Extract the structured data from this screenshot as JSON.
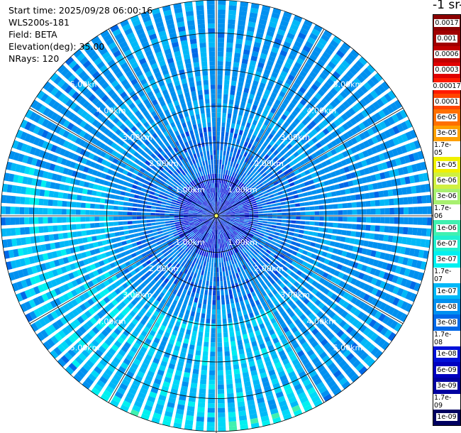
{
  "header": {
    "start_time": "Start time: 2025/09/28 06:00:16",
    "instrument": "WLS200s-181",
    "field": "Field: BETA",
    "elevation": "Elevation(deg): 35.00",
    "nrays": "NRays: 120"
  },
  "colorbar": {
    "title": "-1 sr-1",
    "levels": [
      {
        "label": "0.0017",
        "color": "#8b0000",
        "text": "#ffffff"
      },
      {
        "label": "0.001",
        "color": "#a00000",
        "text": "#ffffff"
      },
      {
        "label": "0.0006",
        "color": "#c00000",
        "text": "#ffffff"
      },
      {
        "label": "0.0003",
        "color": "#e00000",
        "text": "#ffffff"
      },
      {
        "label": "0.00017",
        "color": "#ff1a00",
        "text": "#ffffff"
      },
      {
        "label": "0.0001",
        "color": "#ff4400",
        "text": "#ffffff"
      },
      {
        "label": "6e-05",
        "color": "#ff7000",
        "text": "#000000"
      },
      {
        "label": "3e-05",
        "color": "#ffa000",
        "text": "#000000"
      },
      {
        "label": "1.7e-05",
        "color": "#ffcc00",
        "text": "#000000"
      },
      {
        "label": "1e-05",
        "color": "#f0f000",
        "text": "#000000"
      },
      {
        "label": "6e-06",
        "color": "#d0f040",
        "text": "#000000"
      },
      {
        "label": "3e-06",
        "color": "#a8f070",
        "text": "#000000"
      },
      {
        "label": "1.7e-06",
        "color": "#70f090",
        "text": "#000000"
      },
      {
        "label": "1e-06",
        "color": "#40f0b0",
        "text": "#000000"
      },
      {
        "label": "6e-07",
        "color": "#20f0d0",
        "text": "#000000"
      },
      {
        "label": "3e-07",
        "color": "#00f0f0",
        "text": "#000000"
      },
      {
        "label": "1.7e-07",
        "color": "#00d8f8",
        "text": "#000000"
      },
      {
        "label": "1e-07",
        "color": "#00b8f8",
        "text": "#000000"
      },
      {
        "label": "6e-08",
        "color": "#0090f0",
        "text": "#000000"
      },
      {
        "label": "3e-08",
        "color": "#0068e8",
        "text": "#000000"
      },
      {
        "label": "1.7e-08",
        "color": "#0040e0",
        "text": "#ffffff"
      },
      {
        "label": "1e-08",
        "color": "#0010d8",
        "text": "#ffffff"
      },
      {
        "label": "6e-09",
        "color": "#0000c0",
        "text": "#ffffff"
      },
      {
        "label": "3e-09",
        "color": "#0000a0",
        "text": "#ffffff"
      },
      {
        "label": "1.7e-09",
        "color": "#000080",
        "text": "#ffffff"
      },
      {
        "label": "1e-09",
        "color": "#000060",
        "text": "#ffffff"
      }
    ]
  },
  "chart_data": {
    "type": "heatmap",
    "projection": "polar-ppi",
    "field": "BETA",
    "elevation_deg": 35.0,
    "nrays": 120,
    "max_range_km": 5.9,
    "range_rings_km": [
      1,
      2,
      3,
      4,
      5
    ],
    "ring_labels": [
      "1.00km",
      "2.00km",
      "3.00km",
      "4.00km",
      "5.00km"
    ],
    "spokes_deg": [
      0,
      30,
      60,
      90,
      120,
      150,
      180,
      210,
      240,
      270,
      300,
      330
    ],
    "scale": "log",
    "colorbar_ticks": [
      "0.0017",
      "0.001",
      "0.0006",
      "0.0003",
      "0.00017",
      "0.0001",
      "6e-05",
      "3e-05",
      "1.7e-05",
      "1e-05",
      "6e-06",
      "3e-06",
      "1.7e-06",
      "1e-06",
      "6e-07",
      "3e-07",
      "1.7e-07",
      "1e-07",
      "6e-08",
      "3e-08",
      "1.7e-08",
      "1e-08",
      "6e-09",
      "3e-09",
      "1.7e-09",
      "1e-09"
    ],
    "dominant_range": [
      "3e-08",
      "6e-08"
    ],
    "features": [
      {
        "where": "west to south, 3-5.5 km",
        "value": "1.7e-07"
      },
      {
        "where": "south edge, ~5.5 km",
        "value": "3e-07"
      },
      {
        "where": "north sector, <1.5 km",
        "value": "1e-08"
      }
    ]
  }
}
